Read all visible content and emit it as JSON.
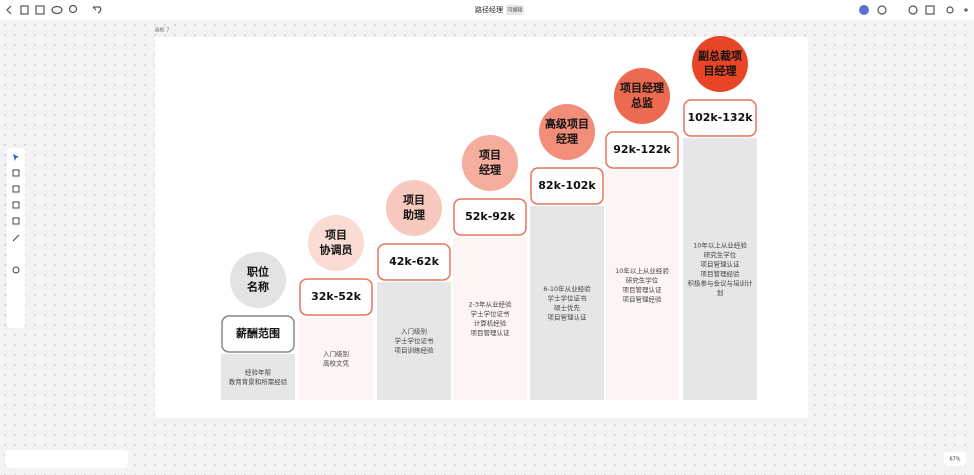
{
  "header": {
    "title": "路径经理",
    "badge": "可编辑"
  },
  "frame_label": "画板 7",
  "zoom": "67%",
  "columns": [
    {
      "role": [
        "职位",
        "名称"
      ],
      "salary": "薪酬范围",
      "details": [
        "经验年限",
        "教育背景和所需经验"
      ]
    },
    {
      "role": [
        "项目",
        "协调员"
      ],
      "salary": "32k-52k",
      "details": [
        "入门级别",
        "高校文凭"
      ]
    },
    {
      "role": [
        "项目",
        "助理"
      ],
      "salary": "42k-62k",
      "details": [
        "入门级别",
        "学士学位证书",
        "项目训练经验"
      ]
    },
    {
      "role": [
        "项目",
        "经理"
      ],
      "salary": "52k-92k",
      "details": [
        "2-3年从业经验",
        "学士学位证书",
        "计算机经验",
        "项目管理认证"
      ]
    },
    {
      "role": [
        "高级项目",
        "经理"
      ],
      "salary": "82k-102k",
      "details": [
        "6-10年从业经验",
        "学士学位证书",
        "硕士优先",
        "项目管理认证"
      ]
    },
    {
      "role": [
        "项目经理",
        "总监"
      ],
      "salary": "92k-122k",
      "details": [
        "10年以上从业经验",
        "研究生学位",
        "项目管理认证",
        "项目管理经验"
      ]
    },
    {
      "role": [
        "副总裁项",
        "目经理"
      ],
      "salary": "102k-132k",
      "details": [
        "10年以上从业经验",
        "研究生学位",
        "项目管理认证",
        "项目管理经验",
        "积极参与会议与培训计",
        "划"
      ]
    }
  ]
}
